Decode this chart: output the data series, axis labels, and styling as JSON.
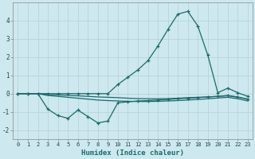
{
  "xlabel": "Humidex (Indice chaleur)",
  "ylabel": "",
  "bg_color": "#cde8ef",
  "grid_color": "#b8d4da",
  "line_color": "#1a6b6b",
  "xlim": [
    -0.5,
    23.5
  ],
  "ylim": [
    -2.5,
    5.0
  ],
  "yticks": [
    -2,
    -1,
    0,
    1,
    2,
    3,
    4
  ],
  "xticks": [
    0,
    1,
    2,
    3,
    4,
    5,
    6,
    7,
    8,
    9,
    10,
    11,
    12,
    13,
    14,
    15,
    16,
    17,
    18,
    19,
    20,
    21,
    22,
    23
  ],
  "series": [
    {
      "x": [
        0,
        1,
        2,
        3,
        4,
        5,
        6,
        7,
        8,
        9,
        10,
        11,
        12,
        13,
        14,
        15,
        16,
        17,
        18,
        19,
        20,
        21,
        22,
        23
      ],
      "y": [
        0.0,
        0.0,
        0.0,
        0.0,
        0.0,
        0.0,
        0.0,
        0.0,
        0.0,
        0.0,
        0.5,
        0.9,
        1.3,
        1.8,
        2.6,
        3.5,
        4.35,
        4.5,
        3.7,
        2.1,
        0.05,
        0.3,
        0.05,
        -0.15
      ],
      "has_markers": true
    },
    {
      "x": [
        0,
        1,
        2,
        3,
        4,
        5,
        6,
        7,
        8,
        9,
        10,
        11,
        12,
        13,
        14,
        15,
        16,
        17,
        18,
        19,
        20,
        21,
        22,
        23
      ],
      "y": [
        0.0,
        0.0,
        0.0,
        -0.05,
        -0.07,
        -0.1,
        -0.12,
        -0.15,
        -0.18,
        -0.2,
        -0.22,
        -0.25,
        -0.27,
        -0.28,
        -0.28,
        -0.27,
        -0.25,
        -0.22,
        -0.2,
        -0.18,
        -0.15,
        -0.12,
        -0.2,
        -0.3
      ],
      "has_markers": false
    },
    {
      "x": [
        0,
        1,
        2,
        3,
        4,
        5,
        6,
        7,
        8,
        9,
        10,
        11,
        12,
        13,
        14,
        15,
        16,
        17,
        18,
        19,
        20,
        21,
        22,
        23
      ],
      "y": [
        0.0,
        0.0,
        0.0,
        -0.1,
        -0.15,
        -0.2,
        -0.25,
        -0.3,
        -0.35,
        -0.38,
        -0.4,
        -0.42,
        -0.43,
        -0.43,
        -0.42,
        -0.4,
        -0.38,
        -0.35,
        -0.32,
        -0.28,
        -0.24,
        -0.2,
        -0.28,
        -0.4
      ],
      "has_markers": false
    },
    {
      "x": [
        0,
        1,
        2,
        3,
        4,
        5,
        6,
        7,
        8,
        9,
        10,
        11,
        12,
        13,
        14,
        15,
        16,
        17,
        18,
        19,
        20,
        21,
        22,
        23
      ],
      "y": [
        0.0,
        0.0,
        0.0,
        -0.85,
        -1.2,
        -1.35,
        -0.9,
        -1.25,
        -1.6,
        -1.5,
        -0.5,
        -0.45,
        -0.4,
        -0.38,
        -0.35,
        -0.32,
        -0.28,
        -0.25,
        -0.22,
        -0.18,
        -0.15,
        -0.1,
        -0.18,
        -0.3
      ],
      "has_markers": true
    }
  ]
}
